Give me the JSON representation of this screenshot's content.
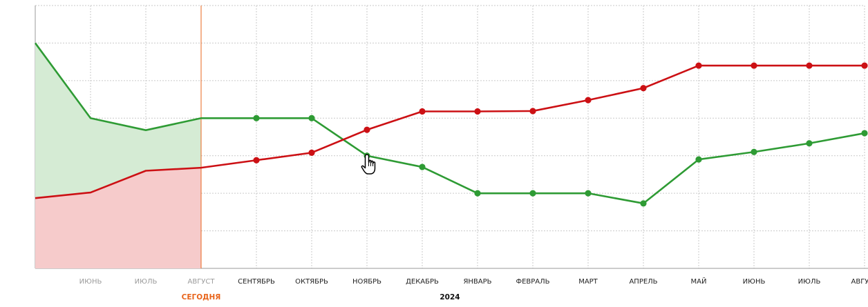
{
  "chart_data": {
    "type": "line",
    "categories": [
      "ИЮНЬ",
      "ИЮЛЬ",
      "АВГУСТ",
      "СЕНТЯБРЬ",
      "ОКТЯБРЬ",
      "НОЯБРЬ",
      "ДЕКАБРЬ",
      "ЯНВАРЬ",
      "ФЕВРАЛЬ",
      "МАРТ",
      "АПРЕЛЬ",
      "МАЙ",
      "ИЮНЬ",
      "ИЮЛЬ",
      "АВГУСТ"
    ],
    "x": [
      0,
      1,
      2,
      3,
      4,
      5,
      6,
      7,
      8,
      9,
      10,
      11,
      12,
      13,
      14
    ],
    "past_count": 3,
    "today_label": "СЕГОДНЯ",
    "year_label": "2024",
    "ylim": [
      0,
      7
    ],
    "grid": true,
    "series": [
      {
        "color": "#2e9b34",
        "fill": "#d5ebd4",
        "points": [
          [
            0.0,
            6.0
          ],
          [
            1.0,
            4.0
          ],
          [
            2.0,
            3.68
          ],
          [
            3.0,
            4.0
          ],
          [
            4.0,
            4.0
          ],
          [
            5.0,
            4.0
          ],
          [
            6.0,
            3.0
          ],
          [
            7.0,
            2.7
          ],
          [
            8.0,
            2.0
          ],
          [
            9.0,
            2.0
          ],
          [
            10.0,
            2.0
          ],
          [
            11.0,
            1.73
          ],
          [
            12.0,
            2.9
          ],
          [
            13.0,
            3.1
          ],
          [
            14.0,
            3.33
          ],
          [
            15.0,
            3.6
          ]
        ],
        "marker_from": 4
      },
      {
        "color": "#cc1014",
        "fill": "#f6cbcb",
        "points": [
          [
            0.0,
            1.87
          ],
          [
            1.0,
            2.02
          ],
          [
            2.0,
            2.6
          ],
          [
            3.0,
            2.68
          ],
          [
            4.0,
            2.88
          ],
          [
            5.0,
            3.08
          ],
          [
            6.0,
            3.69
          ],
          [
            7.0,
            4.18
          ],
          [
            8.0,
            4.18
          ],
          [
            9.0,
            4.19
          ],
          [
            10.0,
            4.48
          ],
          [
            11.0,
            4.8
          ],
          [
            12.0,
            5.4
          ],
          [
            13.0,
            5.4
          ],
          [
            14.0,
            5.4
          ],
          [
            15.0,
            5.4
          ]
        ],
        "marker_from": 4
      }
    ]
  }
}
